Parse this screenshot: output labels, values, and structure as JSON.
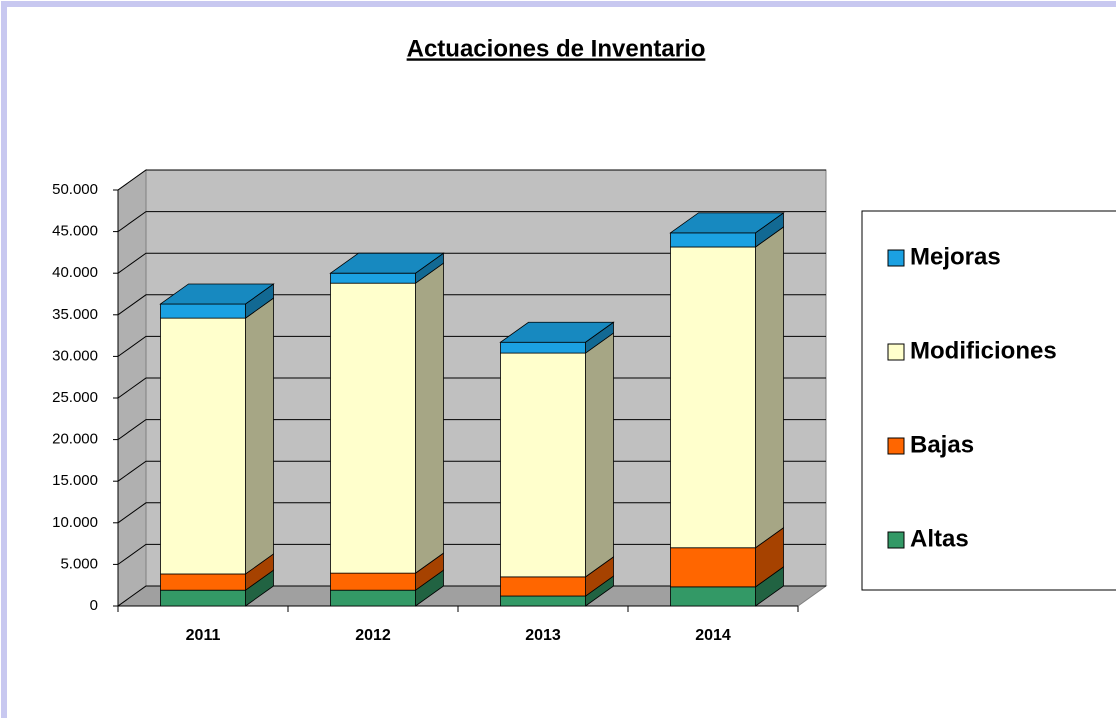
{
  "chart_data": {
    "type": "bar3d_stacked",
    "title": "Actuaciones de Inventario",
    "categories": [
      "2011",
      "2012",
      "2013",
      "2014"
    ],
    "series": [
      {
        "name": "Altas",
        "color": "#339966",
        "values": [
          1900,
          1900,
          1200,
          2300
        ]
      },
      {
        "name": "Bajas",
        "color": "#ff6600",
        "values": [
          1950,
          2050,
          2300,
          4700
        ]
      },
      {
        "name": "Modificiones",
        "color": "#ffffcc",
        "values": [
          30750,
          34850,
          26900,
          36150
        ]
      },
      {
        "name": "Mejoras",
        "color": "#1ba1e2",
        "values": [
          1700,
          1200,
          1300,
          1700
        ]
      }
    ],
    "ylim": [
      0,
      50000
    ],
    "yticks": [
      0,
      {
        "value": 5000,
        "label": "5.000"
      },
      {
        "value": 10000,
        "label": "10.000"
      },
      {
        "value": 15000,
        "label": "15.000"
      },
      {
        "value": 20000,
        "label": "20.000"
      },
      {
        "value": 25000,
        "label": "25.000"
      },
      {
        "value": 30000,
        "label": "30.000"
      },
      {
        "value": 35000,
        "label": "35.000"
      },
      {
        "value": 40000,
        "label": "40.000"
      },
      {
        "value": 45000,
        "label": "45.000"
      },
      {
        "value": 50000,
        "label": "50.000"
      }
    ],
    "grid": true,
    "legend": "right"
  }
}
